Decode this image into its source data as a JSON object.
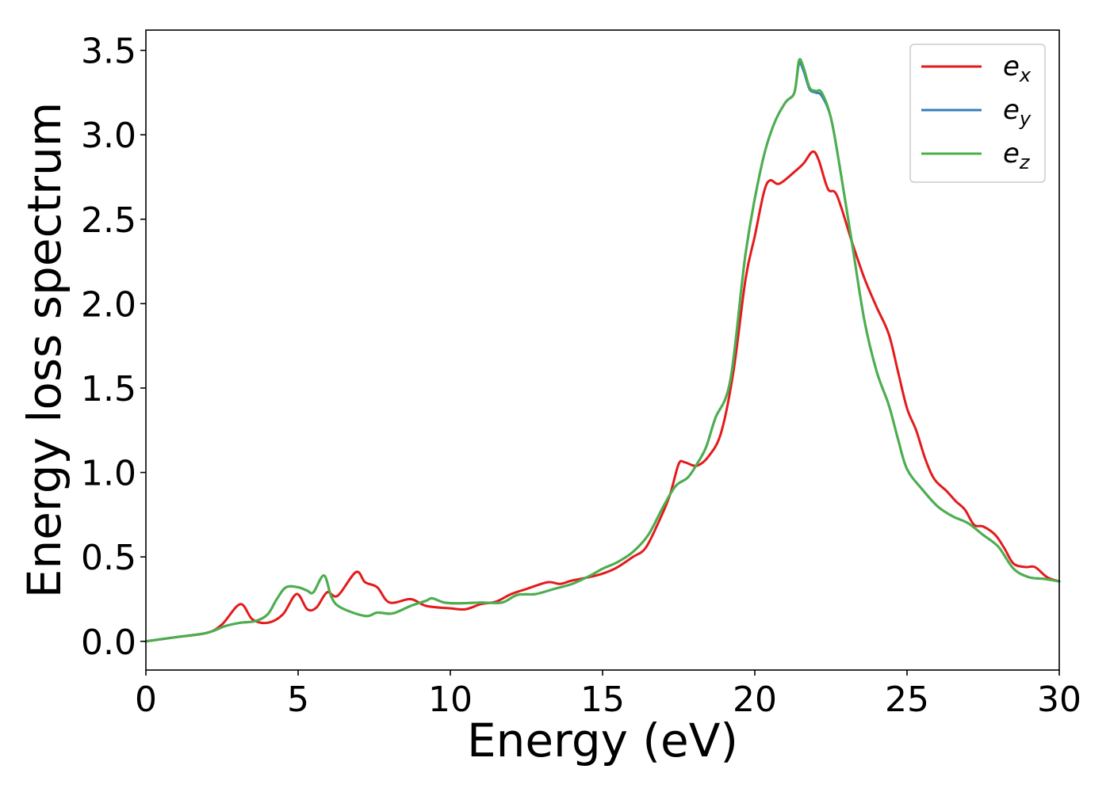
{
  "chart_data": {
    "type": "line",
    "title": "",
    "xlabel": "Energy (eV)",
    "ylabel": "Energy loss spectrum",
    "xlim": [
      0,
      30
    ],
    "ylim": [
      -0.17,
      3.62
    ],
    "xticks": [
      0,
      5,
      10,
      15,
      20,
      25,
      30
    ],
    "yticks": [
      0.0,
      0.5,
      1.0,
      1.5,
      2.0,
      2.5,
      3.0,
      3.5
    ],
    "xtick_labels": [
      "0",
      "5",
      "10",
      "15",
      "20",
      "25",
      "30"
    ],
    "ytick_labels": [
      "0.0",
      "0.5",
      "1.0",
      "1.5",
      "2.0",
      "2.5",
      "3.0",
      "3.5"
    ],
    "grid": false,
    "legend_position": "top-right",
    "series": [
      {
        "name": "e_x",
        "legend_base": "e",
        "legend_sub": "x",
        "color": "#e41a1c",
        "points": [
          [
            0,
            0.0
          ],
          [
            1,
            0.025
          ],
          [
            2,
            0.05
          ],
          [
            2.5,
            0.1
          ],
          [
            3.1,
            0.22
          ],
          [
            3.5,
            0.13
          ],
          [
            4.0,
            0.11
          ],
          [
            4.5,
            0.16
          ],
          [
            4.95,
            0.28
          ],
          [
            5.3,
            0.19
          ],
          [
            5.6,
            0.2
          ],
          [
            5.95,
            0.29
          ],
          [
            6.3,
            0.27
          ],
          [
            6.9,
            0.41
          ],
          [
            7.2,
            0.35
          ],
          [
            7.6,
            0.32
          ],
          [
            8.0,
            0.23
          ],
          [
            8.7,
            0.25
          ],
          [
            9.2,
            0.21
          ],
          [
            10,
            0.195
          ],
          [
            10.5,
            0.19
          ],
          [
            11,
            0.22
          ],
          [
            11.5,
            0.235
          ],
          [
            12,
            0.28
          ],
          [
            12.5,
            0.31
          ],
          [
            13.2,
            0.35
          ],
          [
            13.6,
            0.34
          ],
          [
            14,
            0.36
          ],
          [
            14.8,
            0.39
          ],
          [
            15.4,
            0.43
          ],
          [
            16,
            0.5
          ],
          [
            16.4,
            0.55
          ],
          [
            16.8,
            0.69
          ],
          [
            17.2,
            0.86
          ],
          [
            17.5,
            1.05
          ],
          [
            17.7,
            1.06
          ],
          [
            18.1,
            1.04
          ],
          [
            18.5,
            1.1
          ],
          [
            18.9,
            1.24
          ],
          [
            19.3,
            1.6
          ],
          [
            19.7,
            2.15
          ],
          [
            20.0,
            2.4
          ],
          [
            20.3,
            2.66
          ],
          [
            20.5,
            2.73
          ],
          [
            20.8,
            2.71
          ],
          [
            21.3,
            2.78
          ],
          [
            21.6,
            2.83
          ],
          [
            21.9,
            2.9
          ],
          [
            22.1,
            2.85
          ],
          [
            22.4,
            2.68
          ],
          [
            22.7,
            2.64
          ],
          [
            23.2,
            2.36
          ],
          [
            23.6,
            2.15
          ],
          [
            24.0,
            1.98
          ],
          [
            24.4,
            1.82
          ],
          [
            24.7,
            1.6
          ],
          [
            25.0,
            1.38
          ],
          [
            25.3,
            1.25
          ],
          [
            25.6,
            1.08
          ],
          [
            25.9,
            0.96
          ],
          [
            26.3,
            0.89
          ],
          [
            26.6,
            0.83
          ],
          [
            26.9,
            0.78
          ],
          [
            27.2,
            0.69
          ],
          [
            27.5,
            0.68
          ],
          [
            27.9,
            0.63
          ],
          [
            28.2,
            0.55
          ],
          [
            28.5,
            0.46
          ],
          [
            28.9,
            0.44
          ],
          [
            29.2,
            0.44
          ],
          [
            29.6,
            0.38
          ],
          [
            30,
            0.355
          ]
        ]
      },
      {
        "name": "e_y",
        "legend_base": "e",
        "legend_sub": "y",
        "color": "#377eb8",
        "points": [
          [
            0,
            0.0
          ],
          [
            1,
            0.025
          ],
          [
            2,
            0.05
          ],
          [
            2.6,
            0.09
          ],
          [
            3.1,
            0.11
          ],
          [
            3.6,
            0.12
          ],
          [
            4.0,
            0.16
          ],
          [
            4.3,
            0.25
          ],
          [
            4.6,
            0.32
          ],
          [
            5.0,
            0.32
          ],
          [
            5.3,
            0.3
          ],
          [
            5.5,
            0.29
          ],
          [
            5.85,
            0.39
          ],
          [
            6.1,
            0.26
          ],
          [
            6.4,
            0.2
          ],
          [
            7.2,
            0.15
          ],
          [
            7.6,
            0.17
          ],
          [
            8.1,
            0.165
          ],
          [
            8.7,
            0.21
          ],
          [
            9.2,
            0.24
          ],
          [
            9.4,
            0.255
          ],
          [
            9.8,
            0.23
          ],
          [
            10.3,
            0.225
          ],
          [
            11,
            0.23
          ],
          [
            11.7,
            0.23
          ],
          [
            12.2,
            0.275
          ],
          [
            12.8,
            0.28
          ],
          [
            13.4,
            0.31
          ],
          [
            14,
            0.34
          ],
          [
            14.6,
            0.39
          ],
          [
            15,
            0.43
          ],
          [
            15.5,
            0.47
          ],
          [
            16,
            0.53
          ],
          [
            16.5,
            0.63
          ],
          [
            17,
            0.8
          ],
          [
            17.4,
            0.92
          ],
          [
            17.8,
            0.97
          ],
          [
            18.1,
            1.05
          ],
          [
            18.4,
            1.15
          ],
          [
            18.7,
            1.32
          ],
          [
            19.2,
            1.55
          ],
          [
            19.7,
            2.3
          ],
          [
            20.2,
            2.8
          ],
          [
            20.6,
            3.05
          ],
          [
            21.0,
            3.19
          ],
          [
            21.3,
            3.25
          ],
          [
            21.45,
            3.42
          ],
          [
            21.6,
            3.38
          ],
          [
            21.8,
            3.27
          ],
          [
            22.0,
            3.25
          ],
          [
            22.2,
            3.23
          ],
          [
            22.5,
            3.1
          ],
          [
            22.8,
            2.8
          ],
          [
            23.2,
            2.35
          ],
          [
            23.6,
            1.9
          ],
          [
            24.0,
            1.6
          ],
          [
            24.4,
            1.4
          ],
          [
            24.7,
            1.2
          ],
          [
            25.0,
            1.02
          ],
          [
            25.5,
            0.9
          ],
          [
            26.0,
            0.8
          ],
          [
            26.5,
            0.74
          ],
          [
            27.0,
            0.7
          ],
          [
            27.5,
            0.63
          ],
          [
            28.0,
            0.56
          ],
          [
            28.5,
            0.43
          ],
          [
            29.0,
            0.38
          ],
          [
            29.5,
            0.37
          ],
          [
            30,
            0.355
          ]
        ]
      },
      {
        "name": "e_z",
        "legend_base": "e",
        "legend_sub": "z",
        "color": "#4daf4a",
        "points": [
          [
            0,
            0.0
          ],
          [
            1,
            0.025
          ],
          [
            2,
            0.05
          ],
          [
            2.6,
            0.09
          ],
          [
            3.1,
            0.11
          ],
          [
            3.6,
            0.12
          ],
          [
            4.0,
            0.16
          ],
          [
            4.3,
            0.25
          ],
          [
            4.6,
            0.32
          ],
          [
            5.0,
            0.32
          ],
          [
            5.3,
            0.3
          ],
          [
            5.5,
            0.29
          ],
          [
            5.85,
            0.39
          ],
          [
            6.1,
            0.26
          ],
          [
            6.4,
            0.2
          ],
          [
            7.2,
            0.15
          ],
          [
            7.6,
            0.17
          ],
          [
            8.1,
            0.165
          ],
          [
            8.7,
            0.21
          ],
          [
            9.2,
            0.24
          ],
          [
            9.4,
            0.255
          ],
          [
            9.8,
            0.23
          ],
          [
            10.3,
            0.225
          ],
          [
            11,
            0.23
          ],
          [
            11.7,
            0.23
          ],
          [
            12.2,
            0.275
          ],
          [
            12.8,
            0.28
          ],
          [
            13.4,
            0.31
          ],
          [
            14,
            0.34
          ],
          [
            14.6,
            0.39
          ],
          [
            15,
            0.43
          ],
          [
            15.5,
            0.47
          ],
          [
            16,
            0.53
          ],
          [
            16.5,
            0.63
          ],
          [
            17,
            0.8
          ],
          [
            17.4,
            0.92
          ],
          [
            17.8,
            0.97
          ],
          [
            18.1,
            1.05
          ],
          [
            18.4,
            1.15
          ],
          [
            18.7,
            1.32
          ],
          [
            19.2,
            1.55
          ],
          [
            19.7,
            2.3
          ],
          [
            20.2,
            2.8
          ],
          [
            20.6,
            3.05
          ],
          [
            21.0,
            3.19
          ],
          [
            21.3,
            3.25
          ],
          [
            21.45,
            3.44
          ],
          [
            21.6,
            3.4
          ],
          [
            21.8,
            3.28
          ],
          [
            22.0,
            3.26
          ],
          [
            22.2,
            3.25
          ],
          [
            22.5,
            3.1
          ],
          [
            22.8,
            2.8
          ],
          [
            23.2,
            2.35
          ],
          [
            23.6,
            1.9
          ],
          [
            24.0,
            1.6
          ],
          [
            24.4,
            1.4
          ],
          [
            24.7,
            1.2
          ],
          [
            25.0,
            1.02
          ],
          [
            25.5,
            0.9
          ],
          [
            26.0,
            0.8
          ],
          [
            26.5,
            0.74
          ],
          [
            27.0,
            0.7
          ],
          [
            27.5,
            0.63
          ],
          [
            28.0,
            0.56
          ],
          [
            28.5,
            0.43
          ],
          [
            29.0,
            0.38
          ],
          [
            29.5,
            0.37
          ],
          [
            30,
            0.355
          ]
        ]
      }
    ]
  }
}
